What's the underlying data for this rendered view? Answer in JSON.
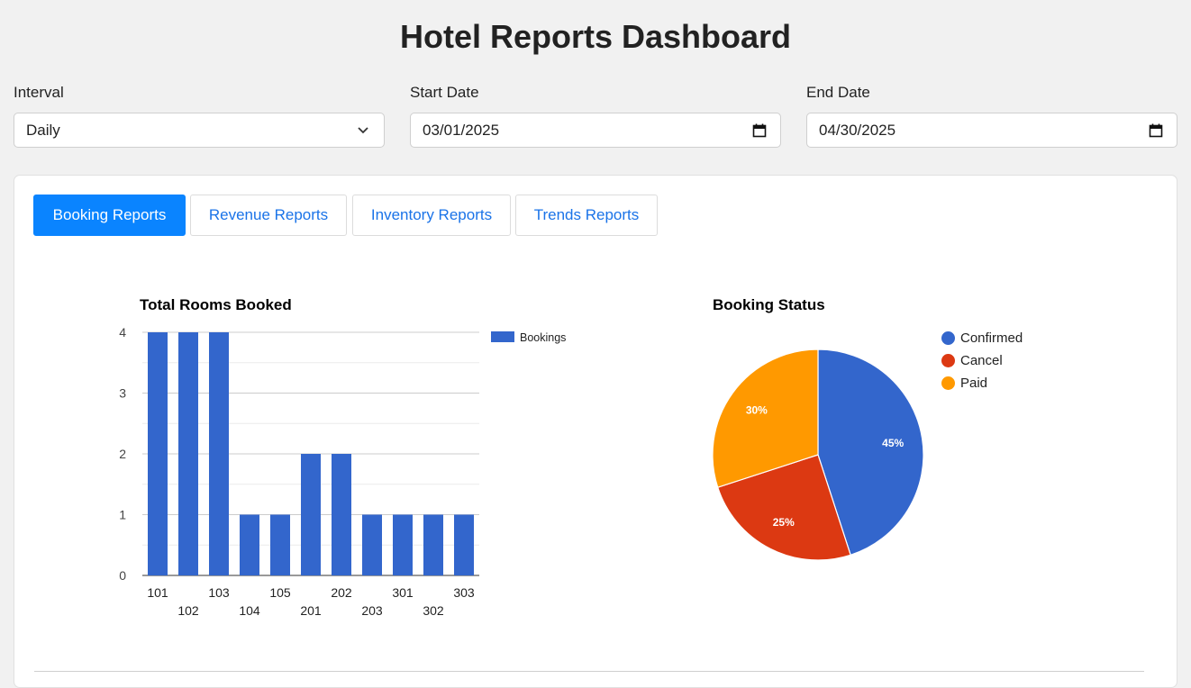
{
  "page": {
    "title": "Hotel Reports Dashboard"
  },
  "filters": {
    "interval": {
      "label": "Interval",
      "value": "Daily"
    },
    "start_date": {
      "label": "Start Date",
      "value": "03/01/2025"
    },
    "end_date": {
      "label": "End Date",
      "value": "04/30/2025"
    }
  },
  "tabs": [
    {
      "label": "Booking Reports",
      "active": true
    },
    {
      "label": "Revenue Reports",
      "active": false
    },
    {
      "label": "Inventory Reports",
      "active": false
    },
    {
      "label": "Trends Reports",
      "active": false
    }
  ],
  "icons": {
    "interval": "chevron-down-icon",
    "start_date": "calendar-icon",
    "end_date": "calendar-icon"
  },
  "colors": {
    "accent": "#0a84ff",
    "tab_text": "#1a73e8",
    "bar": "#3366cc",
    "confirmed": "#3366cc",
    "cancel": "#dc3912",
    "paid": "#ff9900"
  },
  "chart_data": [
    {
      "type": "bar",
      "title": "Total Rooms Booked",
      "categories": [
        "101",
        "102",
        "103",
        "104",
        "105",
        "201",
        "202",
        "203",
        "301",
        "302",
        "303"
      ],
      "series": [
        {
          "name": "Bookings",
          "values": [
            4,
            4,
            4,
            1,
            1,
            2,
            2,
            1,
            1,
            1,
            1
          ]
        }
      ],
      "ylim": [
        0,
        4
      ],
      "yticks": [
        "0",
        "1",
        "2",
        "3",
        "4"
      ],
      "legend": "right",
      "grid": true
    },
    {
      "type": "pie",
      "title": "Booking Status",
      "labels": [
        "Confirmed",
        "Cancel",
        "Paid"
      ],
      "values": [
        45,
        25,
        30
      ],
      "value_labels": [
        "45%",
        "25%",
        "30%"
      ],
      "legend": "right"
    }
  ]
}
